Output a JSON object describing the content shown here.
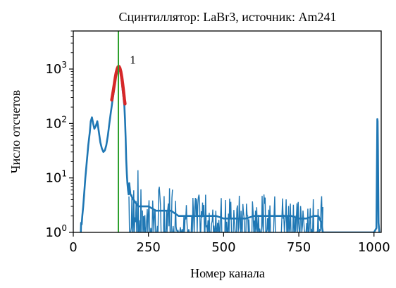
{
  "chart_data": {
    "type": "line",
    "title": "Сцинтиллятор: LaBr3, источник: Am241",
    "xlabel": "Номер канала",
    "ylabel": "Число отсчетов",
    "xlim": [
      0,
      1024
    ],
    "ylim": [
      1,
      5000
    ],
    "yscale": "log",
    "grid": false,
    "x_ticks": [
      {
        "value": 0,
        "label": "0"
      },
      {
        "value": 250,
        "label": "250"
      },
      {
        "value": 500,
        "label": "500"
      },
      {
        "value": 750,
        "label": "750"
      },
      {
        "value": 1000,
        "label": "1000"
      }
    ],
    "y_ticks": [
      {
        "value": 1,
        "base": "10",
        "exp": "0"
      },
      {
        "value": 10,
        "base": "10",
        "exp": "1"
      },
      {
        "value": 100,
        "base": "10",
        "exp": "2"
      },
      {
        "value": 1000,
        "base": "10",
        "exp": "3"
      }
    ],
    "spectrum": {
      "color": "#1f77b4",
      "x": [
        25,
        26,
        28,
        30,
        33,
        36,
        40,
        45,
        50,
        55,
        58,
        62,
        66,
        70,
        75,
        80,
        85,
        90,
        95,
        100,
        105,
        110,
        115,
        120,
        125,
        128,
        130,
        133,
        136,
        140,
        143,
        146,
        149,
        152,
        155,
        158,
        161,
        164,
        167,
        170,
        172,
        174,
        176,
        178,
        180,
        182,
        184,
        186,
        190,
        200,
        215,
        230,
        250,
        275,
        300,
        325,
        350,
        375,
        400,
        425,
        450,
        475,
        500,
        525,
        550,
        575,
        600,
        625,
        650,
        675,
        700,
        725,
        750,
        775,
        800,
        815,
        825,
        830,
        840,
        860,
        880,
        900,
        920,
        940,
        960,
        980,
        1000,
        1008,
        1010,
        1011,
        1012,
        1013,
        1015,
        1018,
        1020
      ],
      "y": [
        1,
        1.5,
        1.4,
        2,
        3,
        5,
        10,
        20,
        40,
        70,
        110,
        130,
        100,
        80,
        90,
        110,
        70,
        45,
        35,
        30,
        32,
        40,
        60,
        100,
        160,
        210,
        260,
        330,
        430,
        620,
        800,
        1000,
        1120,
        1110,
        980,
        800,
        600,
        420,
        300,
        210,
        120,
        55,
        22,
        12,
        8,
        6,
        5,
        8,
        5,
        4,
        3,
        3,
        3,
        2.5,
        2.5,
        2.5,
        2,
        2,
        2,
        2,
        2,
        2,
        1.8,
        1.8,
        1.8,
        1.8,
        2,
        2,
        2,
        2,
        2,
        2,
        1.8,
        1.8,
        2,
        2,
        1.5,
        1,
        1,
        1,
        1,
        1,
        1,
        1,
        1,
        1,
        1,
        1.2,
        20,
        120,
        110,
        40,
        1.5,
        1,
        1
      ]
    },
    "noise": {
      "color": "#1f77b4",
      "segments": [
        {
          "x_start": 185,
          "x_end": 230,
          "y_high": 15,
          "y_low": 1
        },
        {
          "x_start": 230,
          "x_end": 330,
          "y_high": 8,
          "y_low": 1
        },
        {
          "x_start": 330,
          "x_end": 600,
          "y_high": 5,
          "y_low": 1
        },
        {
          "x_start": 600,
          "x_end": 830,
          "y_high": 5,
          "y_low": 1
        }
      ]
    },
    "peak_fit": {
      "color": "#d62728",
      "x": [
        128,
        131,
        134,
        137,
        140,
        143,
        146,
        149,
        152,
        155,
        158,
        161,
        164,
        167,
        170,
        172
      ],
      "y": [
        270,
        340,
        430,
        550,
        700,
        860,
        1000,
        1100,
        1110,
        1040,
        900,
        720,
        540,
        390,
        280,
        230
      ]
    },
    "vline": {
      "x": 150,
      "color": "#2ca02c"
    },
    "annotations": [
      {
        "x": 160,
        "y": 1500,
        "text": "1"
      }
    ]
  }
}
